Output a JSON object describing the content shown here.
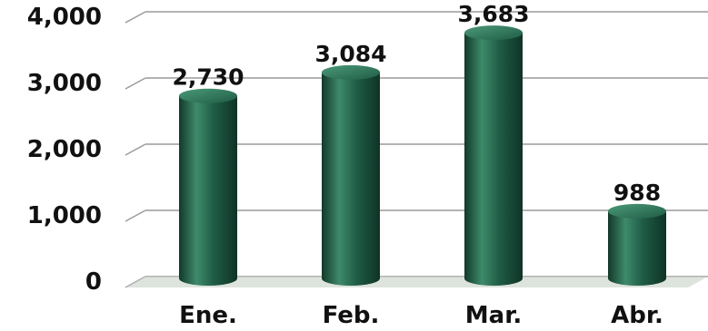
{
  "chart_data": {
    "type": "bar",
    "categories": [
      "Ene.",
      "Feb.",
      "Mar.",
      "Abr."
    ],
    "values": [
      2730,
      3084,
      3683,
      988
    ],
    "value_labels": [
      "2,730",
      "3,084",
      "3,683",
      "988"
    ],
    "y_ticks": [
      0,
      1000,
      2000,
      3000,
      4000
    ],
    "y_tick_labels": [
      "0",
      "1,000",
      "2,000",
      "3,000",
      "4,000"
    ],
    "ylim": [
      0,
      4000
    ],
    "title": "",
    "xlabel": "",
    "ylabel": "",
    "grid": true,
    "bar_style": "3d-cylinder",
    "colors": {
      "bar": "#1f5c46",
      "bar_light": "#3e8a6b",
      "bar_dark": "#12392b",
      "grid": "#9a9a9a",
      "floor": "#cfd7cf"
    }
  }
}
